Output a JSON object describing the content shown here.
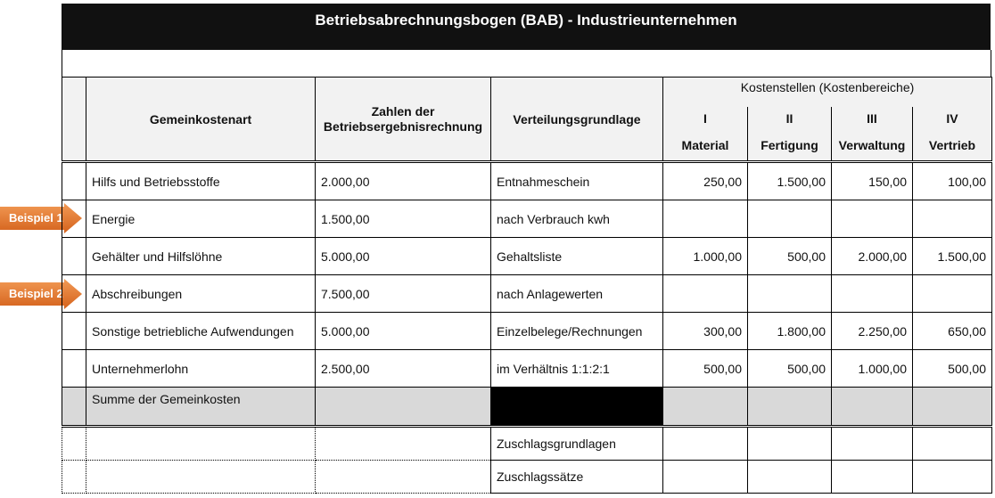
{
  "title": "Betriebsabrechnungsbogen (BAB) - Industrieunternehmen",
  "header": {
    "col_type": "Gemeinkostenart",
    "col_amount": "Zahlen der Betriebsergebnisrechnung",
    "col_basis": "Verteilungsgrundlage",
    "cost_centers_label": "Kostenstellen (Kostenbereiche)",
    "cost_centers": [
      {
        "numeral": "I",
        "name": "Material"
      },
      {
        "numeral": "II",
        "name": "Fertigung"
      },
      {
        "numeral": "III",
        "name": "Verwaltung"
      },
      {
        "numeral": "IV",
        "name": "Vertrieb"
      }
    ]
  },
  "rows": [
    {
      "type": "Hilfs und Betriebsstoffe",
      "amount": "2.000,00",
      "basis": "Entnahmeschein",
      "values": [
        "250,00",
        "1.500,00",
        "150,00",
        "100,00"
      ]
    },
    {
      "type": "Energie",
      "amount": "1.500,00",
      "basis": "nach Verbrauch kwh",
      "values": [
        "",
        "",
        "",
        ""
      ],
      "badge": "Beispiel 1"
    },
    {
      "type": "Gehälter und Hilfslöhne",
      "amount": "5.000,00",
      "basis": "Gehaltsliste",
      "values": [
        "1.000,00",
        "500,00",
        "2.000,00",
        "1.500,00"
      ]
    },
    {
      "type": "Abschreibungen",
      "amount": "7.500,00",
      "basis": "nach Anlagewerten",
      "values": [
        "",
        "",
        "",
        ""
      ],
      "badge": "Beispiel 2"
    },
    {
      "type": "Sonstige betriebliche Aufwendungen",
      "amount": "5.000,00",
      "basis": "Einzelbelege/Rechnungen",
      "values": [
        "300,00",
        "1.800,00",
        "2.250,00",
        "650,00"
      ]
    },
    {
      "type": "Unternehmerlohn",
      "amount": "2.500,00",
      "basis": "im Verhältnis 1:1:2:1",
      "values": [
        "500,00",
        "500,00",
        "1.000,00",
        "500,00"
      ]
    }
  ],
  "sum_label": "Summe der Gemeinkosten",
  "footer_rows": [
    "Zuschlagsgrundlagen",
    "Zuschlagssätze"
  ],
  "colors": {
    "title_bg": "#111111",
    "header_bg": "#f2f2f2",
    "sum_bg": "#d9d9d9",
    "badge": "#e07028"
  }
}
